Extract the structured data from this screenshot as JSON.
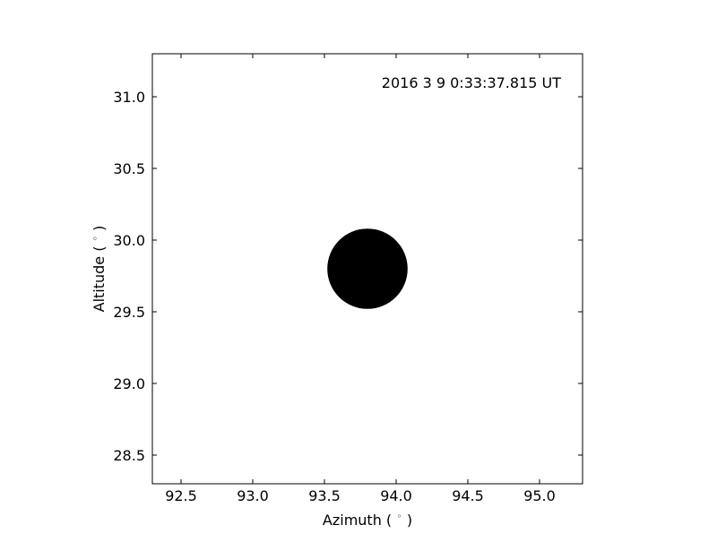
{
  "chart_data": {
    "type": "scatter",
    "annotation": "2016 3 9 0:33:37.815 UT",
    "xlabel": "Azimuth ($^\\circ$)",
    "ylabel": "Altitude ($^\\circ$)",
    "xlim": [
      92.3,
      95.3
    ],
    "ylim": [
      28.3,
      31.3
    ],
    "xticks": [
      92.5,
      93.0,
      93.5,
      94.0,
      94.5,
      95.0
    ],
    "xtick_labels": [
      "92.5",
      "93.0",
      "93.5",
      "94.0",
      "94.5",
      "95.0"
    ],
    "yticks": [
      28.5,
      29.0,
      29.5,
      30.0,
      30.5,
      31.0
    ],
    "ytick_labels": [
      "28.5",
      "29.0",
      "29.5",
      "30.0",
      "30.5",
      "31.0"
    ],
    "grid": false,
    "points": [
      {
        "x": 93.8,
        "y": 29.8,
        "radius": 0.28,
        "color": "#000000"
      }
    ]
  }
}
